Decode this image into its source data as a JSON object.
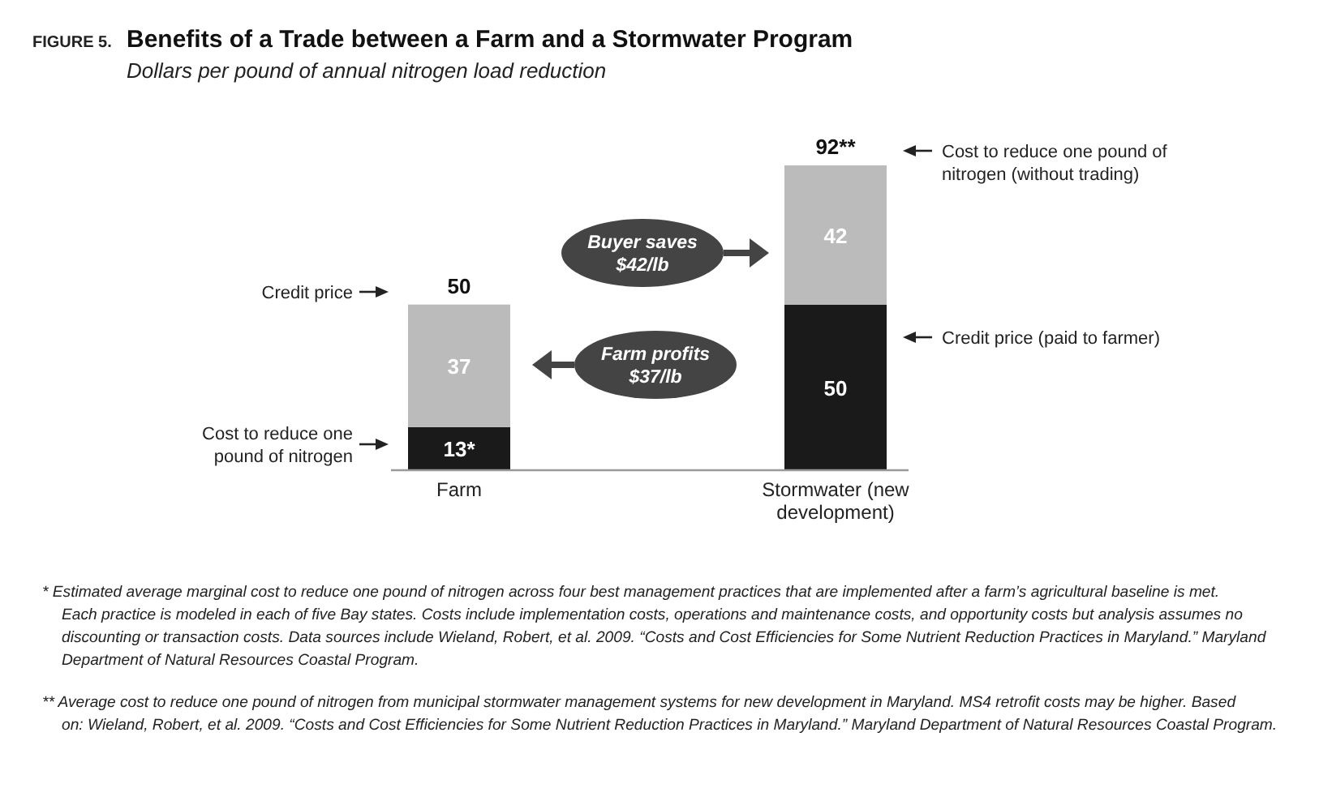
{
  "chart_data": {
    "type": "bar",
    "stacked": true,
    "title": "Benefits of a Trade between a Farm and a Stormwater Program",
    "subtitle": "Dollars per pound of annual nitrogen load reduction",
    "categories": [
      "Farm",
      "Stormwater (new development)"
    ],
    "tick_labels": "x",
    "series": [
      {
        "color": "#1a1a1a",
        "values": [
          13,
          50
        ],
        "value_labels": [
          "13*",
          "50"
        ]
      },
      {
        "color": "#bbbbbb",
        "values": [
          37,
          42
        ],
        "value_labels": [
          "37",
          "42"
        ]
      }
    ],
    "totals": [
      "50",
      "92**"
    ],
    "annotations": [
      "FIGURE 5.",
      "Credit price",
      "Cost to reduce one pound of nitrogen",
      "Cost to reduce one pound of nitrogen (without trading)",
      "Credit price (paid to farmer)",
      "Buyer saves $42/lb",
      "Farm profits $37/lb",
      "* Estimated average marginal cost to reduce one pound of nitrogen across four best management practices that are implemented after a farm’s agricultural baseline is met. Each practice is modeled in each of five Bay states. Costs include implementation costs, operations and maintenance costs, and opportunity costs but analysis assumes no discounting or transaction costs. Data sources include Wieland, Robert, et al. 2009. “Costs and Cost Efficiencies for Some Nutrient Reduction Practices in Maryland.” Maryland Department of Natural Resources Coastal Program.",
      "** Average cost to reduce one pound of nitrogen from municipal stormwater management systems for new development in Maryland. MS4 retrofit costs may be higher. Based on: Wieland, Robert, et al. 2009. “Costs and Cost Efficiencies for Some Nutrient Reduction Practices in Maryland.” Maryland Department of Natural Resources Coastal Program."
    ]
  }
}
